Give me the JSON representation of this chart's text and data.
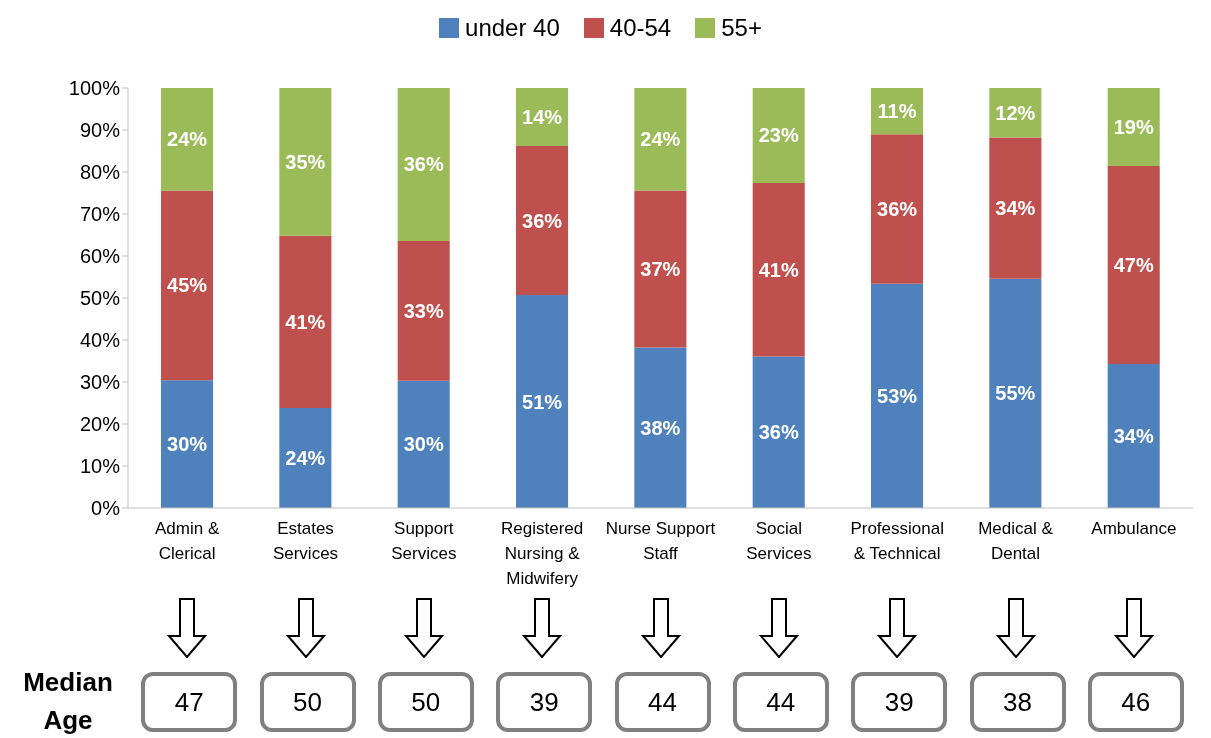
{
  "chart_data": {
    "type": "bar",
    "stacked": true,
    "categories": [
      "Admin & Clerical",
      "Estates Services",
      "Support Services",
      "Registered Nursing & Midwifery",
      "Nurse Support Staff",
      "Social Services",
      "Professional & Technical",
      "Medical & Dental",
      "Ambulance"
    ],
    "series": [
      {
        "name": "under 40",
        "color": "#4f81bd",
        "values": [
          30.4,
          23.8,
          30.3,
          50.7,
          38.2,
          36.1,
          53.4,
          54.6,
          34.3
        ],
        "value_labels": [
          "30%",
          "24%",
          "30%",
          "51%",
          "38%",
          "36%",
          "53%",
          "55%",
          "34%"
        ]
      },
      {
        "name": "40-54",
        "color": "#c0504d",
        "values": [
          45.2,
          41.0,
          33.3,
          35.5,
          37.4,
          41.3,
          35.6,
          33.6,
          47.1
        ],
        "value_labels": [
          "45%",
          "41%",
          "33%",
          "36%",
          "37%",
          "41%",
          "36%",
          "34%",
          "47%"
        ]
      },
      {
        "name": "55+",
        "color": "#9bbb59",
        "values": [
          24.4,
          35.2,
          36.4,
          13.8,
          24.4,
          22.6,
          11.0,
          11.8,
          18.6
        ],
        "value_labels": [
          "24%",
          "35%",
          "36%",
          "14%",
          "24%",
          "23%",
          "11%",
          "12%",
          "19%"
        ]
      }
    ],
    "ylim": [
      0,
      100
    ],
    "yticks": [
      {
        "value": 0,
        "label": "0%"
      },
      {
        "value": 10,
        "label": "10%"
      },
      {
        "value": 20,
        "label": "20%"
      },
      {
        "value": 30,
        "label": "30%"
      },
      {
        "value": 40,
        "label": "40%"
      },
      {
        "value": 50,
        "label": "50%"
      },
      {
        "value": 60,
        "label": "60%"
      },
      {
        "value": 70,
        "label": "70%"
      },
      {
        "value": 80,
        "label": "80%"
      },
      {
        "value": 90,
        "label": "90%"
      },
      {
        "value": 100,
        "label": "100%"
      }
    ],
    "legend": "top",
    "annotations": [
      "Median Age",
      "47",
      "50",
      "50",
      "39",
      "44",
      "44",
      "39",
      "38",
      "46"
    ]
  }
}
